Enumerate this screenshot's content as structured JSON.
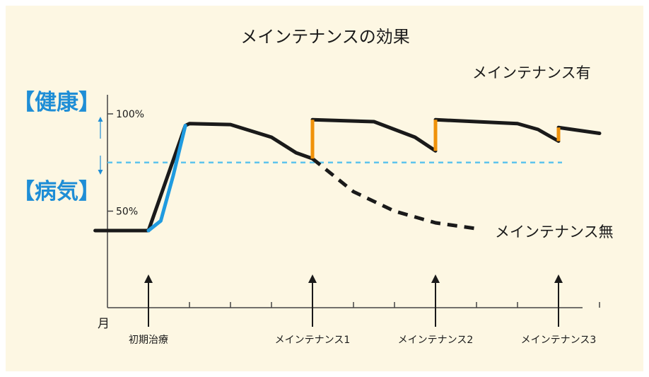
{
  "colors": {
    "background": "#ffffff",
    "panel": "#fdf7e3",
    "ink": "#1a1a1a",
    "treatment_line": "#1f9be0",
    "maintenance_spike": "#f0920a",
    "threshold_line": "#5ec4ec",
    "category_text": "#1f8ed6"
  },
  "chart_data": {
    "type": "line",
    "title": "メインテナンスの効果",
    "xlabel": "月",
    "ylabel": "",
    "ylim": [
      0,
      115
    ],
    "grid": false,
    "y_ticks": [
      {
        "value": 100,
        "label": "100%"
      },
      {
        "value": 50,
        "label": "50%"
      }
    ],
    "y_categories": [
      {
        "label": "【健康】",
        "at": 100
      },
      {
        "label": "【病気】",
        "at": 50
      }
    ],
    "threshold": 75,
    "x_tick_months": [
      2,
      3,
      4,
      5,
      6,
      7,
      8,
      9,
      10,
      11,
      12
    ],
    "events": [
      {
        "label": "初期治療",
        "x": 1
      },
      {
        "label": "メインテナンス1",
        "x": 5
      },
      {
        "label": "メインテナンス2",
        "x": 8
      },
      {
        "label": "メインテナンス3",
        "x": 11
      }
    ],
    "series": [
      {
        "name": "メインテナンス有",
        "style": "solid",
        "color": "#1a1a1a",
        "points": [
          [
            5,
            97
          ],
          [
            6.5,
            96
          ],
          [
            7.5,
            88
          ],
          [
            8,
            81
          ],
          [
            8,
            97
          ],
          [
            9,
            96
          ],
          [
            10,
            95
          ],
          [
            10.5,
            92
          ],
          [
            11,
            86
          ],
          [
            11,
            93
          ],
          [
            12,
            90
          ]
        ]
      },
      {
        "name": "メインテナンス無",
        "style": "dashed",
        "color": "#1a1a1a",
        "points": [
          [
            5,
            77
          ],
          [
            6,
            60
          ],
          [
            7,
            50
          ],
          [
            8,
            44
          ],
          [
            9,
            41
          ]
        ]
      },
      {
        "name": "",
        "style": "solid",
        "color": "#1a1a1a",
        "points": [
          [
            -0.3,
            40
          ],
          [
            1,
            40
          ],
          [
            1.9,
            94
          ],
          [
            2,
            95
          ],
          [
            3,
            94.5
          ],
          [
            4,
            88
          ],
          [
            4.6,
            80
          ],
          [
            5,
            77
          ]
        ]
      },
      {
        "name": "",
        "style": "solid",
        "color": "#1f9be0",
        "points": [
          [
            1,
            40
          ],
          [
            1.3,
            45
          ],
          [
            1.6,
            68
          ],
          [
            1.9,
            94
          ]
        ]
      }
    ],
    "maintenance_jumps": [
      {
        "x": 5,
        "from": 77,
        "to": 97
      },
      {
        "x": 8,
        "from": 81,
        "to": 97
      },
      {
        "x": 11,
        "from": 86,
        "to": 93
      }
    ]
  }
}
